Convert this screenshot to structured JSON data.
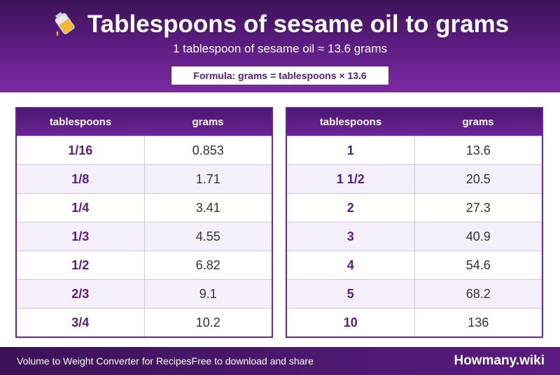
{
  "header": {
    "icon": "oil-pouring-icon",
    "title": "Tablespoons of sesame oil to grams",
    "subtitle": "1 tablespoon of sesame oil ≈ 13.6 grams",
    "formula": "Formula: grams = tablespoons × 13.6"
  },
  "tables": [
    {
      "headers": [
        "tablespoons",
        "grams"
      ],
      "rows": [
        [
          "1/16",
          "0.853"
        ],
        [
          "1/8",
          "1.71"
        ],
        [
          "1/4",
          "3.41"
        ],
        [
          "1/3",
          "4.55"
        ],
        [
          "1/2",
          "6.82"
        ],
        [
          "2/3",
          "9.1"
        ],
        [
          "3/4",
          "10.2"
        ]
      ]
    },
    {
      "headers": [
        "tablespoons",
        "grams"
      ],
      "rows": [
        [
          "1",
          "13.6"
        ],
        [
          "1 1/2",
          "20.5"
        ],
        [
          "2",
          "27.3"
        ],
        [
          "3",
          "40.9"
        ],
        [
          "4",
          "54.6"
        ],
        [
          "5",
          "68.2"
        ],
        [
          "10",
          "136"
        ]
      ]
    }
  ],
  "footer": {
    "left_text": "Volume to Weight Converter for Recipes",
    "left_text_2": "Free to download and share",
    "brand": "Howmany.wiki"
  },
  "colors": {
    "primary": "#5a1c80",
    "row_alt": "#f4effa"
  }
}
